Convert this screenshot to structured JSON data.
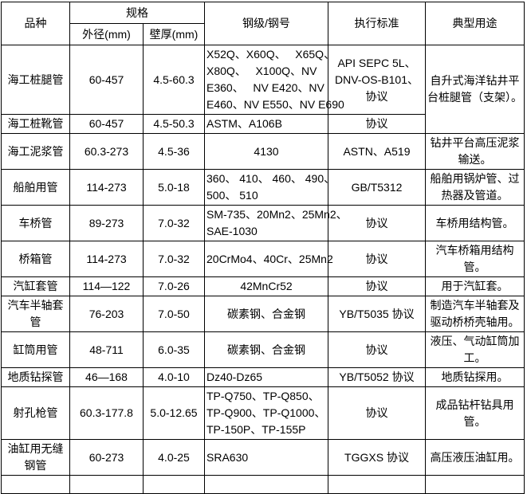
{
  "colors": {
    "border": "#000000",
    "background": "#ffffff",
    "text": "#000000"
  },
  "table": {
    "header": {
      "col_product": "品种",
      "col_spec": "规格",
      "col_od": "外径(mm)",
      "col_wt": "壁厚(mm)",
      "col_grade": "钢级/钢号",
      "col_standard": "执行标准",
      "col_use": "典型用途"
    },
    "rows": [
      {
        "product": "海工桩腿管",
        "od": "60-457",
        "wt": "4.5-60.3",
        "grade": {
          "t": "X52Q、X60Q、   X65Q、\nX80Q、   X100Q、NV\nE360、   NV E420、NV\nE460、NV E550、NV E690",
          "align": "left"
        },
        "standard": "API SEPC 5L、\nDNV-OS-B101、\n协议",
        "use": {
          "t": "自升式海洋钻井平\n台桩腿管（支架）。",
          "rowspan": 2
        }
      },
      {
        "product": "海工桩靴管",
        "od": "60-457",
        "wt": "4.5-50.3",
        "grade": {
          "t": "ASTM、A106B",
          "align": "left"
        },
        "standard": "协议"
      },
      {
        "product": "海工泥浆管",
        "od": "60.3-273",
        "wt": "4.5-36",
        "grade": "4130",
        "standard": "ASTN、A519",
        "use": "钻井平台高压泥浆\n输送。"
      },
      {
        "product": "船舶用管",
        "od": "114-273",
        "wt": "5.0-18",
        "grade": {
          "t": "360、 410、 460、 490、\n500、 510",
          "align": "left"
        },
        "standard": "GB/T5312",
        "use": "船舶用锅炉管、过\n热器及管道。"
      },
      {
        "product": "车桥管",
        "od": "89-273",
        "wt": "7.0-32",
        "grade": {
          "t": "SM-735、20Mn2、25Mn2、\nSAE-1030",
          "align": "left"
        },
        "standard": "协议",
        "use": "车桥用结构管。"
      },
      {
        "product": "桥箱管",
        "od": "114-273",
        "wt": "7.0-32",
        "grade": {
          "t": "20CrMo4、40Cr、25Mn2",
          "align": "left"
        },
        "standard": "协议",
        "use": "汽车桥箱用结构\n管。"
      },
      {
        "product": "汽缸套管",
        "od": "114—122",
        "wt": "7.0-26",
        "grade": "42MnCr52",
        "standard": "协议",
        "use": "用于汽缸套。"
      },
      {
        "product": "汽车半轴套\n管",
        "od": "76-203",
        "wt": "7.0-50",
        "grade": "碳素钢、合金钢",
        "standard": "YB/T5035 协议",
        "use": "制造汽车半轴套及\n驱动桥桥壳轴用。"
      },
      {
        "product": "缸筒用管",
        "od": "48-711",
        "wt": "6.0-35",
        "grade": "碳素钢、合金钢",
        "standard": "协议",
        "use": "液压、气动缸筒加\n工。"
      },
      {
        "product": "地质钻探管",
        "od": "46—168",
        "wt": "4.0-10",
        "grade": {
          "t": "Dz40-Dz65",
          "align": "left"
        },
        "standard": "YB/T5052 协议",
        "use": "地质钻探用。"
      },
      {
        "product": "射孔枪管",
        "od": "60.3-177.8",
        "wt": "5.0-12.65",
        "grade": {
          "t": "TP-Q750、TP-Q850、\nTP-Q900、TP-Q1000、\nTP-150P、TP-155P",
          "align": "left"
        },
        "standard": "协议",
        "use": "成品钻杆钻具用\n管。"
      },
      {
        "product": "油缸用无缝\n钢管",
        "od": "60-273",
        "wt": "4.0-25",
        "grade": {
          "t": "SRA630",
          "align": "left"
        },
        "standard": "TGGXS 协议",
        "use": "高压液压油缸用。"
      }
    ]
  }
}
